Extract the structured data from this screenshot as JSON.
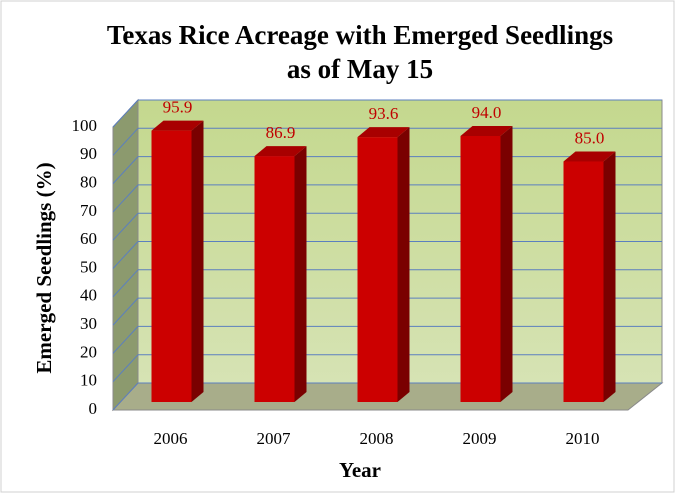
{
  "chart_data": {
    "type": "bar3d",
    "title": [
      "Texas Rice Acreage with Emerged Seedlings",
      "as of May 15"
    ],
    "x_label": "Year",
    "y_label": "Emerged Seedlings (%)",
    "categories": [
      "2006",
      "2007",
      "2008",
      "2009",
      "2010"
    ],
    "values": [
      95.9,
      86.9,
      93.6,
      94.0,
      85.0
    ],
    "value_labels": [
      "95.9",
      "86.9",
      "93.6",
      "94.0",
      "85.0"
    ],
    "color": "#cc0000",
    "ylim": [
      0,
      100
    ],
    "yticks": [
      0,
      10,
      20,
      30,
      40,
      50,
      60,
      70,
      80,
      90,
      100
    ],
    "grid": true
  }
}
